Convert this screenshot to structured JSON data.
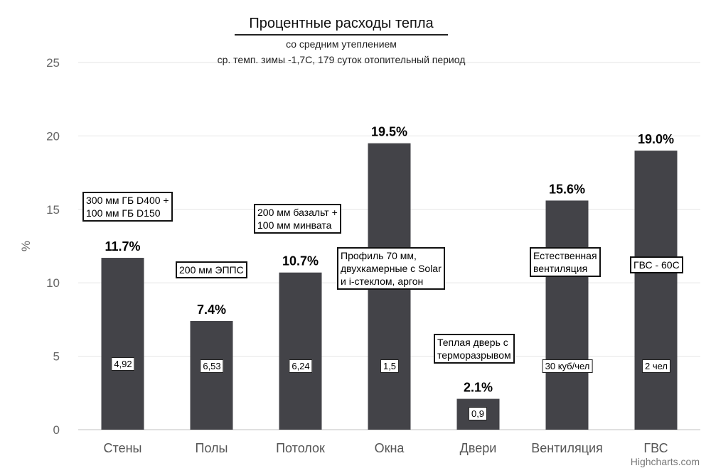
{
  "chart_data": {
    "type": "bar",
    "title": "Процентные расходы тепла",
    "subtitle_1": "со средним утеплением",
    "subtitle_2": "ср. темп. зимы -1,7С, 179 суток отопительный период",
    "ylabel": "%",
    "xlabel": "",
    "ylim": [
      0,
      25
    ],
    "yticks": [
      0,
      5,
      10,
      15,
      20,
      25
    ],
    "grid": true,
    "categories": [
      "Стены",
      "Полы",
      "Потолок",
      "Окна",
      "Двери",
      "Вентиляция",
      "ГВС"
    ],
    "values": [
      11.7,
      7.4,
      10.7,
      19.5,
      2.1,
      15.6,
      19.0
    ],
    "data_labels": [
      "11.7%",
      "7.4%",
      "10.7%",
      "19.5%",
      "2.1%",
      "15.6%",
      "19.0%"
    ],
    "bar_color": "#434348",
    "in_bar_labels": [
      "4,92",
      "6,53",
      "6,24",
      "1,5",
      "0,9",
      "30 куб/чел",
      "2 чел"
    ],
    "annotations": {
      "walls": [
        "300 мм ГБ D400 +",
        "100 мм ГБ D150"
      ],
      "floors": [
        "200 мм ЭППС"
      ],
      "ceiling": [
        "200 мм базальт +",
        "100 мм минвата"
      ],
      "windows": [
        "Профиль 70 мм,",
        "двухкамерные с Solar",
        "и i-стеклом, аргон"
      ],
      "doors": [
        "Теплая дверь с",
        "терморазрывом"
      ],
      "ventilation": [
        "Естественная",
        "вентиляция"
      ],
      "hot_water": [
        "ГВС - 60С"
      ]
    }
  },
  "credit": "Highcharts.com"
}
